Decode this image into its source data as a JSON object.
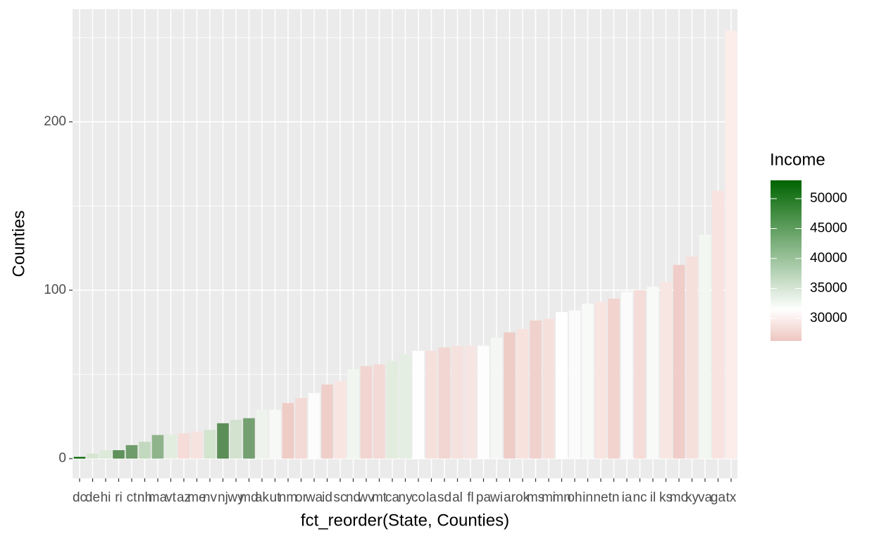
{
  "chart_data": {
    "type": "bar",
    "x_label": "fct_reorder(State, Counties)",
    "y_label": "Counties",
    "categories": [
      "dc",
      "de",
      "hi",
      "ri",
      "ct",
      "nh",
      "ma",
      "vt",
      "az",
      "me",
      "nv",
      "nj",
      "wy",
      "md",
      "ak",
      "ut",
      "nm",
      "or",
      "wa",
      "id",
      "sc",
      "nd",
      "wv",
      "mt",
      "ca",
      "ny",
      "co",
      "la",
      "sd",
      "al",
      "fl",
      "pa",
      "wi",
      "ar",
      "ok",
      "ms",
      "mi",
      "mn",
      "oh",
      "in",
      "ne",
      "tn",
      "ia",
      "nc",
      "il",
      "ks",
      "mo",
      "ky",
      "va",
      "ga",
      "tx"
    ],
    "values": [
      1,
      3,
      5,
      5,
      8,
      10,
      14,
      14,
      15,
      16,
      17,
      21,
      23,
      24,
      29,
      29,
      33,
      36,
      39,
      44,
      46,
      53,
      55,
      56,
      58,
      62,
      64,
      64,
      66,
      67,
      67,
      67,
      72,
      75,
      77,
      82,
      83,
      87,
      88,
      92,
      93,
      95,
      99,
      100,
      102,
      105,
      115,
      120,
      133,
      159,
      254
    ],
    "colors": [
      "#0d6a0d",
      "#d6e6d2",
      "#dde9d9",
      "#5e925a",
      "#6f9c6b",
      "#c3d9bf",
      "#8fb38a",
      "#e2ede0",
      "#f5dcd8",
      "#f6e2df",
      "#d3e4cf",
      "#5b8f57",
      "#d2e2ce",
      "#75a071",
      "#eef4ed",
      "#f7f9f6",
      "#efccc6",
      "#f3dad6",
      "#fcfcfc",
      "#efcec9",
      "#f8e5e2",
      "#f2f6f1",
      "#f2d5d0",
      "#f4dad6",
      "#e3eddf",
      "#e4eee2",
      "#fefefe",
      "#f6e0dc",
      "#f2d6d1",
      "#f5e1dd",
      "#f6e5e2",
      "#fdfdfd",
      "#f4f7f3",
      "#efcdc7",
      "#f7e2de",
      "#f1d1cc",
      "#f6e0dc",
      "#ffffff",
      "#fafbfa",
      "#f8faf7",
      "#f8e4e1",
      "#f2d3ce",
      "#fafbfa",
      "#f5dcd8",
      "#f8faf7",
      "#f8e6e3",
      "#f0cdc8",
      "#f6e0dc",
      "#f3f7f2",
      "#f9e3e0",
      "#fcecea"
    ],
    "ylim": [
      -11.7,
      266.9
    ],
    "yticks": [
      0,
      100,
      200
    ],
    "y_minor_ticks": [
      50,
      150,
      250
    ],
    "grid": true,
    "legend": {
      "title": "Income",
      "lim": [
        26235,
        53059
      ],
      "ticks": [
        30000,
        35000,
        40000,
        45000,
        50000
      ],
      "gradient": [
        {
          "value": 26235,
          "color": "#eec6c0"
        },
        {
          "value": 31500,
          "color": "#ffffff"
        },
        {
          "value": 53059,
          "color": "#006400"
        }
      ]
    }
  }
}
